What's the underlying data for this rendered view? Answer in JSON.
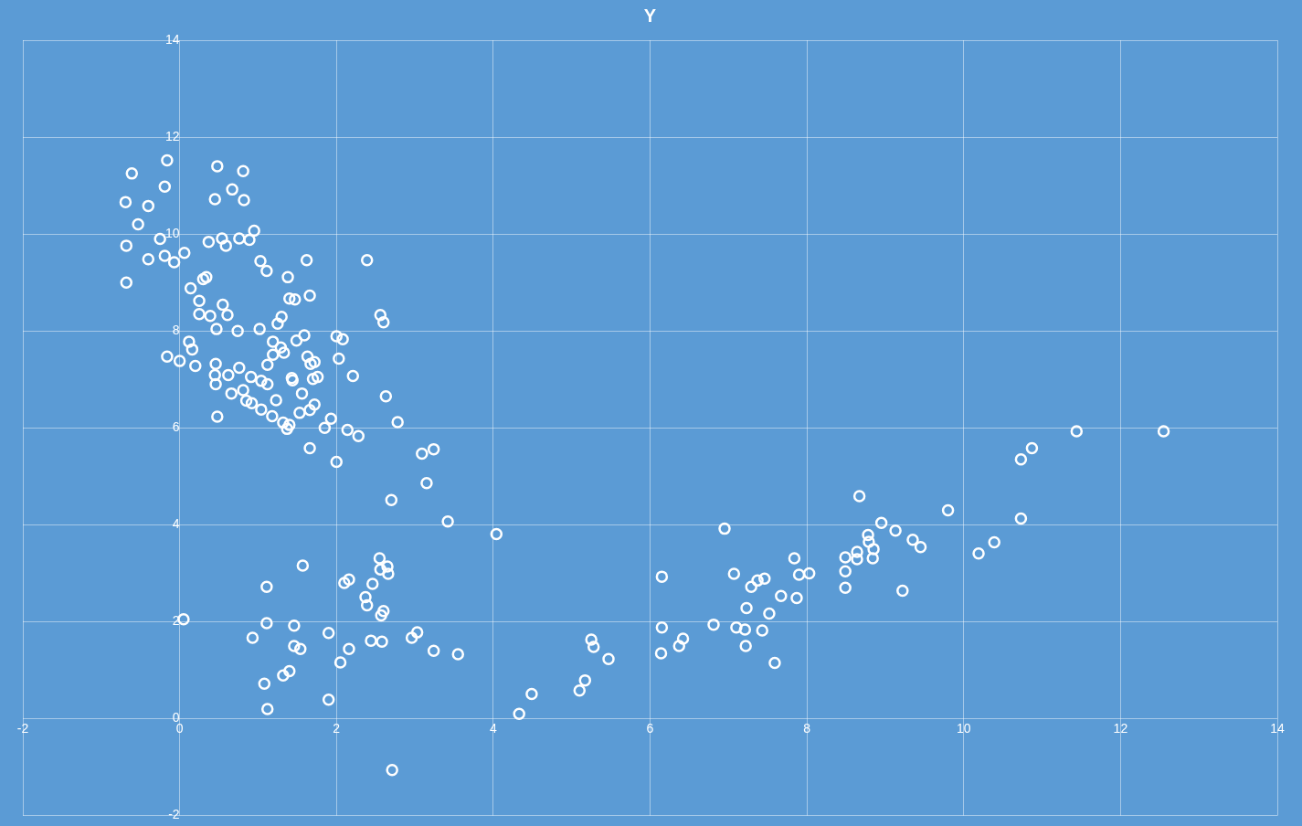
{
  "chart_data": {
    "type": "scatter",
    "title": "Y",
    "marker": "circle",
    "grid": true,
    "legend": false,
    "xlim": [
      -2,
      14
    ],
    "xticks": [
      -2,
      0,
      2,
      4,
      6,
      8,
      10,
      12,
      14
    ],
    "ylim": [
      -2,
      14
    ],
    "yticks": [
      -2,
      0,
      2,
      4,
      6,
      8,
      10,
      12,
      14
    ],
    "series": [
      {
        "color": "#ffffff",
        "x": [
          -0.69,
          -0.61,
          -0.16,
          -0.19,
          -0.4,
          -0.53,
          -0.25,
          -0.68,
          -0.4,
          -0.19,
          -0.07,
          0.06,
          -0.68,
          0.48,
          0.81,
          0.45,
          0.67,
          0.82,
          0.37,
          0.54,
          0.59,
          0.76,
          0.89,
          0.95,
          0.14,
          0.3,
          0.34,
          0.25,
          0.25,
          0.39,
          0.55,
          0.61,
          0.47,
          0.74,
          1.03,
          1.11,
          1.38,
          1.62,
          1.4,
          1.47,
          1.66,
          1.3,
          1.25,
          1.02,
          2.39,
          2.56,
          2.6,
          -0.16,
          0.0,
          0.12,
          0.16,
          0.2,
          0.46,
          0.45,
          0.46,
          0.62,
          0.76,
          0.81,
          0.66,
          0.48,
          0.91,
          0.85,
          0.92,
          1.04,
          1.12,
          1.04,
          1.12,
          1.19,
          1.19,
          1.29,
          1.33,
          1.49,
          1.59,
          1.63,
          1.67,
          1.72,
          1.43,
          1.44,
          1.7,
          1.76,
          1.56,
          1.72,
          1.66,
          1.53,
          1.23,
          1.18,
          1.32,
          1.37,
          1.4,
          1.66,
          2.0,
          2.08,
          2.03,
          2.21,
          1.93,
          1.85,
          2.14,
          2.28,
          2.0,
          2.63,
          2.78,
          3.09,
          3.24,
          3.15,
          2.7,
          3.42,
          4.04,
          0.05,
          1.11,
          1.11,
          0.93,
          1.57,
          1.46,
          1.46,
          1.54,
          1.08,
          1.32,
          1.4,
          1.12,
          1.9,
          2.05,
          2.16,
          1.9,
          2.1,
          2.16,
          2.37,
          2.39,
          2.46,
          2.44,
          2.55,
          2.56,
          2.65,
          2.66,
          2.6,
          2.57,
          2.58,
          2.96,
          3.03,
          3.24,
          3.55,
          2.71,
          4.33,
          4.49,
          5.1,
          5.17,
          5.25,
          5.28,
          5.47,
          6.15,
          6.15,
          6.14,
          6.37,
          6.42,
          6.81,
          6.95,
          7.07,
          7.1,
          7.21,
          7.22,
          7.23,
          7.29,
          7.37,
          7.46,
          7.43,
          7.52,
          7.59,
          7.67,
          7.84,
          7.9,
          8.03,
          7.87,
          8.49,
          8.49,
          8.49,
          8.64,
          8.67,
          8.64,
          8.78,
          8.79,
          8.85,
          8.84,
          8.95,
          9.13,
          9.22,
          9.35,
          9.45,
          9.8,
          10.19,
          10.39,
          10.73,
          10.73,
          10.87,
          11.44,
          12.55
        ],
        "values": [
          10.66,
          11.25,
          11.52,
          10.98,
          10.58,
          10.2,
          9.9,
          9.76,
          9.48,
          9.55,
          9.42,
          9.61,
          9.0,
          11.4,
          11.3,
          10.72,
          10.92,
          10.7,
          9.84,
          9.91,
          9.76,
          9.91,
          9.88,
          10.07,
          8.88,
          9.07,
          9.11,
          8.62,
          8.35,
          8.31,
          8.54,
          8.33,
          8.04,
          8.0,
          9.44,
          9.24,
          9.11,
          9.46,
          8.67,
          8.65,
          8.73,
          8.29,
          8.15,
          8.04,
          9.46,
          8.33,
          8.18,
          7.47,
          7.38,
          7.78,
          7.62,
          7.28,
          7.32,
          7.09,
          6.9,
          7.09,
          7.24,
          6.78,
          6.71,
          6.23,
          7.05,
          6.56,
          6.51,
          6.97,
          6.9,
          6.38,
          7.3,
          7.78,
          7.51,
          7.66,
          7.55,
          7.8,
          7.91,
          7.47,
          7.32,
          7.36,
          7.03,
          6.98,
          7.01,
          7.05,
          6.71,
          6.48,
          6.37,
          6.31,
          6.57,
          6.24,
          6.11,
          5.98,
          6.06,
          5.58,
          7.89,
          7.83,
          7.43,
          7.07,
          6.19,
          6.0,
          5.96,
          5.83,
          5.3,
          6.65,
          6.12,
          5.47,
          5.56,
          4.86,
          4.51,
          4.07,
          3.81,
          2.05,
          2.72,
          1.97,
          1.67,
          3.16,
          1.92,
          1.5,
          1.44,
          0.72,
          0.89,
          0.98,
          0.2,
          1.77,
          1.16,
          1.44,
          0.39,
          2.8,
          2.87,
          2.51,
          2.34,
          2.78,
          1.61,
          3.31,
          3.08,
          3.14,
          2.99,
          2.22,
          2.13,
          1.59,
          1.67,
          1.78,
          1.4,
          1.33,
          -1.06,
          0.1,
          0.51,
          0.58,
          0.79,
          1.63,
          1.48,
          1.23,
          2.93,
          1.88,
          1.35,
          1.5,
          1.65,
          1.94,
          3.92,
          2.99,
          1.88,
          1.84,
          1.5,
          2.28,
          2.72,
          2.85,
          2.89,
          1.82,
          2.17,
          1.15,
          2.53,
          3.31,
          2.97,
          3.0,
          2.49,
          3.33,
          3.04,
          2.7,
          3.44,
          4.59,
          3.29,
          3.79,
          3.65,
          3.5,
          3.31,
          4.04,
          3.88,
          2.64,
          3.69,
          3.54,
          4.3,
          3.41,
          3.64,
          4.13,
          5.35,
          5.58,
          5.93,
          5.93
        ]
      }
    ]
  }
}
